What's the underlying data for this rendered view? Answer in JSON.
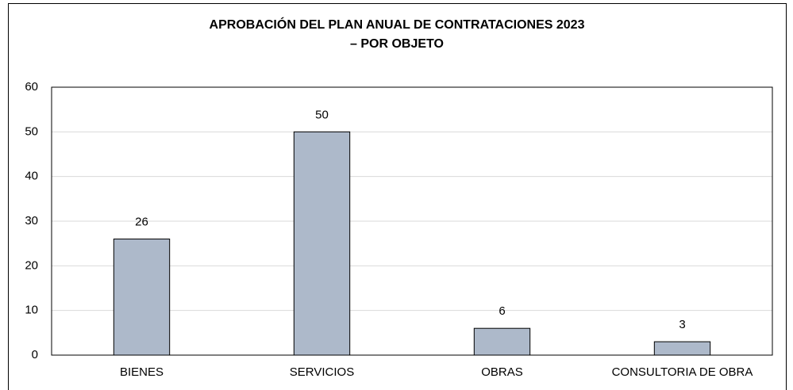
{
  "chart_data": {
    "type": "bar",
    "title": [
      "APROBACIÓN DEL PLAN ANUAL DE CONTRATACIONES 2023",
      "– POR OBJETO"
    ],
    "categories": [
      "BIENES",
      "SERVICIOS",
      "OBRAS",
      "CONSULTORIA DE OBRA"
    ],
    "values": [
      26,
      50,
      6,
      3
    ],
    "color": "#adb9ca",
    "ylim": [
      0,
      60
    ],
    "yticks": [
      0,
      10,
      20,
      30,
      40,
      50,
      60
    ],
    "grid": true
  }
}
